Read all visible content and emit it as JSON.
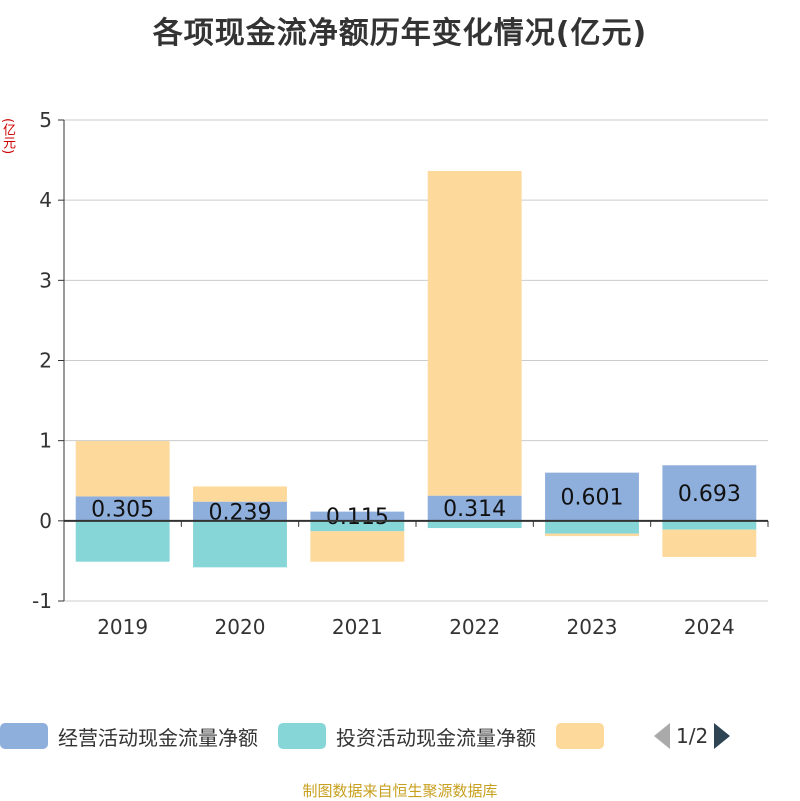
{
  "chart_data": {
    "type": "bar",
    "stacked": true,
    "title": "各项现金流净额历年变化情况(亿元)",
    "unit_label": "(亿元)",
    "categories": [
      "2019",
      "2020",
      "2021",
      "2022",
      "2023",
      "2024"
    ],
    "ylim": [
      -1,
      5
    ],
    "yticks": [
      -1,
      0,
      1,
      2,
      3,
      4,
      5
    ],
    "grid": true,
    "series": [
      {
        "name": "经营活动现金流量净额",
        "color": "#8eaedb",
        "values": [
          0.305,
          0.239,
          0.115,
          0.314,
          0.601,
          0.693
        ],
        "show_labels": true
      },
      {
        "name": "投资活动现金流量净额",
        "color": "#86d6d8",
        "values": [
          -0.51,
          -0.58,
          -0.13,
          -0.09,
          -0.16,
          -0.11
        ],
        "show_labels": false
      },
      {
        "name": "",
        "color": "#fdd99b",
        "values": [
          0.69,
          0.19,
          -0.38,
          4.05,
          -0.03,
          -0.34
        ],
        "show_labels": false
      }
    ],
    "legend_position": "bottom"
  },
  "legend": {
    "items": [
      {
        "label": "经营活动现金流量净额",
        "color": "#8eaedb"
      },
      {
        "label": "投资活动现金流量净额",
        "color": "#86d6d8"
      },
      {
        "label": "",
        "color": "#fdd99b"
      }
    ],
    "page_indicator": "1/2"
  },
  "source": "制图数据来自恒生聚源数据库"
}
